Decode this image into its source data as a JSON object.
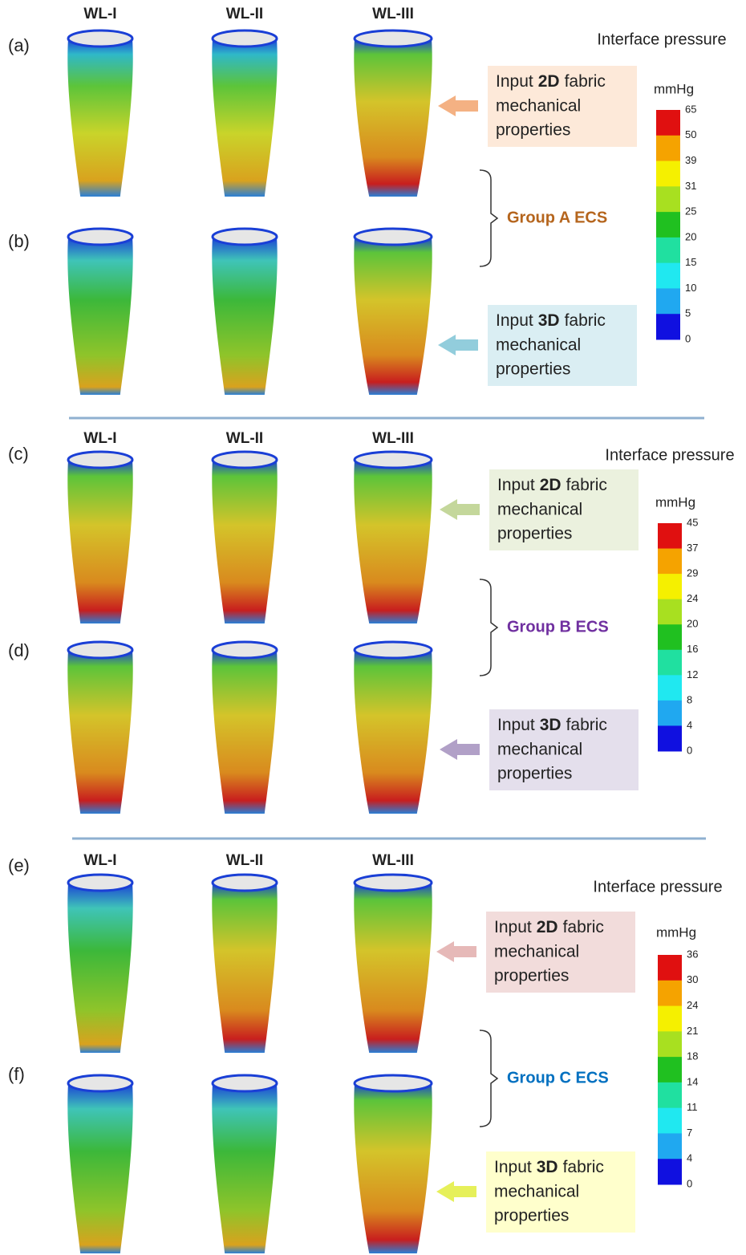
{
  "sections": [
    {
      "panels": [
        "(a)",
        "(b)"
      ],
      "columns": [
        "WL-I",
        "WL-II",
        "WL-III"
      ],
      "legend": {
        "title": "Interface pressure",
        "unit": "mmHg",
        "ticks": [
          65,
          50,
          39,
          31,
          25,
          20,
          15,
          10,
          5,
          0
        ]
      },
      "group": "Group A ECS",
      "inputs": [
        {
          "lead": "Input",
          "dim": "2D",
          "rest": "fabric",
          "line2": "mechanical",
          "line3": "properties"
        },
        {
          "lead": "Input",
          "dim": "3D",
          "rest": "fabric",
          "line2": "mechanical",
          "line3": "properties"
        }
      ]
    },
    {
      "panels": [
        "(c)",
        "(d)"
      ],
      "columns": [
        "WL-I",
        "WL-II",
        "WL-III"
      ],
      "legend": {
        "title": "Interface pressure",
        "unit": "mmHg",
        "ticks": [
          45,
          37,
          29,
          24,
          20,
          16,
          12,
          8,
          4,
          0
        ]
      },
      "group": "Group B ECS",
      "inputs": [
        {
          "lead": "Input",
          "dim": "2D",
          "rest": "fabric",
          "line2": "mechanical",
          "line3": "properties"
        },
        {
          "lead": "Input",
          "dim": "3D",
          "rest": "fabric",
          "line2": "mechanical",
          "line3": "properties"
        }
      ]
    },
    {
      "panels": [
        "(e)",
        "(f)"
      ],
      "columns": [
        "WL-I",
        "WL-II",
        "WL-III"
      ],
      "legend": {
        "title": "Interface pressure",
        "unit": "mmHg",
        "ticks": [
          36,
          30,
          24,
          21,
          18,
          14,
          11,
          7,
          4,
          0
        ]
      },
      "group": "Group C ECS",
      "inputs": [
        {
          "lead": "Input",
          "dim": "2D",
          "rest": "fabric",
          "line2": "mechanical",
          "line3": "properties"
        },
        {
          "lead": "Input",
          "dim": "3D",
          "rest": "fabric",
          "line2": "mechanical",
          "line3": "properties"
        }
      ]
    }
  ]
}
